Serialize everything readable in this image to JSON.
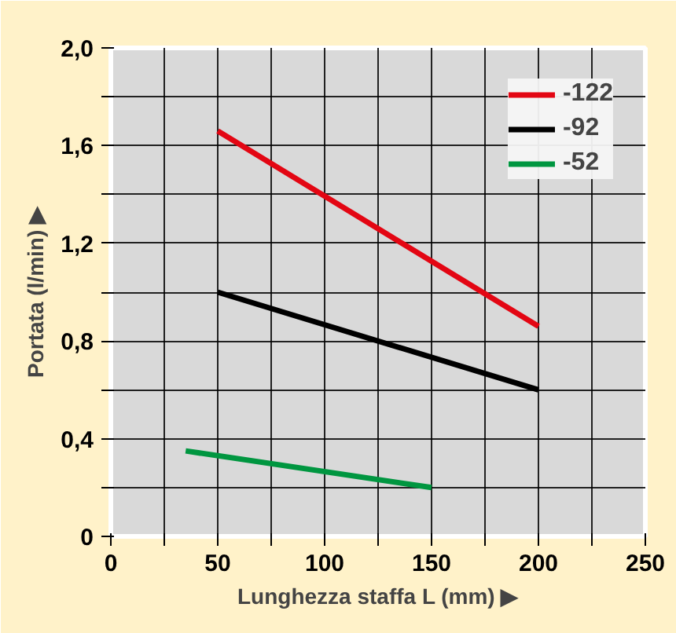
{
  "chart_data": {
    "type": "line",
    "xlabel": "Lunghezza staffa L (mm) ▶",
    "ylabel": "Portata (l/min) ▶",
    "xlim": [
      0,
      250
    ],
    "ylim": [
      0,
      2.0
    ],
    "xticks": [
      0,
      {
        "value": 25,
        "label": null
      },
      50,
      {
        "value": 75,
        "label": null
      },
      100,
      {
        "value": 125,
        "label": null
      },
      150,
      {
        "value": 175,
        "label": null
      },
      200,
      {
        "value": 225,
        "label": null
      },
      250
    ],
    "yticks": [
      {
        "value": 0,
        "label": "0"
      },
      {
        "value": 0.2,
        "label": null
      },
      {
        "value": 0.4,
        "label": "0,4"
      },
      {
        "value": 0.6,
        "label": null
      },
      {
        "value": 0.8,
        "label": "0,8"
      },
      {
        "value": 1.0,
        "label": null
      },
      {
        "value": 1.2,
        "label": "1,2"
      },
      {
        "value": 1.4,
        "label": null
      },
      {
        "value": 1.6,
        "label": "1,6"
      },
      {
        "value": 1.8,
        "label": null
      },
      {
        "value": 2.0,
        "label": "2,0"
      }
    ],
    "grid": true,
    "legend": "top right",
    "marker": "none",
    "line_style": "solid",
    "series": [
      {
        "name": "-122",
        "color": "#e30613",
        "x": [
          50,
          200
        ],
        "values": [
          1.66,
          0.86
        ]
      },
      {
        "name": "-92",
        "color": "#000000",
        "x": [
          50,
          200
        ],
        "values": [
          1.0,
          0.6
        ]
      },
      {
        "name": "-52",
        "color": "#009640",
        "x": [
          35,
          150
        ],
        "values": [
          0.35,
          0.2
        ]
      }
    ]
  }
}
